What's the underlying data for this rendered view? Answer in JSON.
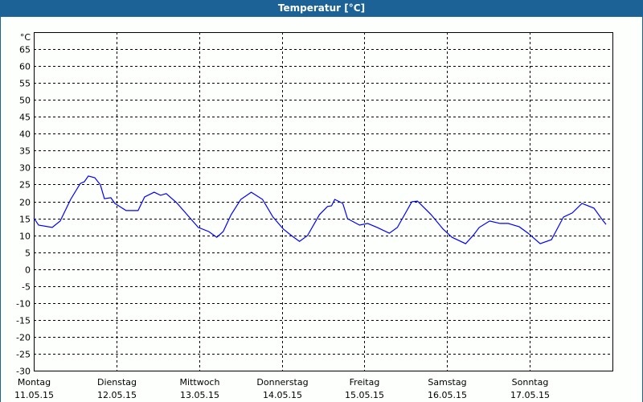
{
  "window": {
    "title": "Temperatur [°C]"
  },
  "chart_data": {
    "type": "line",
    "title": "Temperatur [°C]",
    "ylabel": "°C",
    "ylim": [
      -30,
      70
    ],
    "yticks": [
      65,
      60,
      55,
      50,
      45,
      40,
      35,
      30,
      25,
      20,
      15,
      10,
      5,
      0,
      -5,
      -10,
      -15,
      -20,
      -25,
      -30
    ],
    "xlim": [
      "11.05.15 00:00",
      "18.05.15 00:00"
    ],
    "xticks": [
      {
        "day": "Montag",
        "date": "11.05.15"
      },
      {
        "day": "Dienstag",
        "date": "12.05.15"
      },
      {
        "day": "Mittwoch",
        "date": "13.05.15"
      },
      {
        "day": "Donnerstag",
        "date": "14.05.15"
      },
      {
        "day": "Freitag",
        "date": "15.05.15"
      },
      {
        "day": "Samstag",
        "date": "16.05.15"
      },
      {
        "day": "Sonntag",
        "date": "17.05.15"
      }
    ],
    "grid": true,
    "grid_style": "dashed",
    "line_color": "#0000ff",
    "series": [
      {
        "points": [
          [
            "11.05.15 00:00",
            15.1
          ],
          [
            "11.05.15 01:24",
            13.0
          ],
          [
            "11.05.15 05:22",
            12.3
          ],
          [
            "11.05.15 07:41",
            14.2
          ],
          [
            "11.05.15 10:43",
            20.6
          ],
          [
            "11.05.15 13:31",
            25.3
          ],
          [
            "11.05.15 14:41",
            25.8
          ],
          [
            "11.05.15 15:50",
            27.5
          ],
          [
            "11.05.15 17:43",
            27.0
          ],
          [
            "11.05.15 19:20",
            24.9
          ],
          [
            "11.05.15 20:30",
            20.8
          ],
          [
            "11.05.15 22:22",
            21.1
          ],
          [
            "11.05.15 23:32",
            19.4
          ],
          [
            "12.05.15 02:48",
            17.3
          ],
          [
            "12.05.15 06:17",
            17.3
          ],
          [
            "12.05.15 08:10",
            21.3
          ],
          [
            "12.05.15 10:57",
            22.7
          ],
          [
            "12.05.15 12:49",
            21.8
          ],
          [
            "12.05.15 14:27",
            22.3
          ],
          [
            "12.05.15 17:29",
            19.6
          ],
          [
            "12.05.15 20:30",
            16.1
          ],
          [
            "12.05.15 23:46",
            12.3
          ],
          [
            "13.05.15 02:48",
            11.1
          ],
          [
            "13.05.15 05:08",
            9.4
          ],
          [
            "13.05.15 07:00",
            11.1
          ],
          [
            "13.05.15 09:19",
            16.1
          ],
          [
            "13.05.15 12:07",
            20.6
          ],
          [
            "13.05.15 15:09",
            22.7
          ],
          [
            "13.05.15 18:25",
            20.6
          ],
          [
            "13.05.15 21:26",
            15.4
          ],
          [
            "14.05.15 00:28",
            11.8
          ],
          [
            "14.05.15 02:48",
            9.9
          ],
          [
            "14.05.15 05:08",
            8.2
          ],
          [
            "14.05.15 07:28",
            9.9
          ],
          [
            "14.05.15 10:57",
            16.1
          ],
          [
            "14.05.15 13:17",
            18.5
          ],
          [
            "14.05.15 14:27",
            18.7
          ],
          [
            "14.05.15 15:23",
            20.6
          ],
          [
            "14.05.15 17:43",
            19.4
          ],
          [
            "14.05.15 19:06",
            14.9
          ],
          [
            "14.05.15 22:36",
            13.0
          ],
          [
            "15.05.15 00:56",
            13.5
          ],
          [
            "15.05.15 03:44",
            12.3
          ],
          [
            "15.05.15 07:13",
            10.6
          ],
          [
            "15.05.15 09:33",
            12.3
          ],
          [
            "15.05.15 13:45",
            19.9
          ],
          [
            "15.05.15 15:23",
            20.1
          ],
          [
            "15.05.15 19:20",
            16.1
          ],
          [
            "15.05.15 22:50",
            11.8
          ],
          [
            "16.05.15 01:24",
            9.4
          ],
          [
            "16.05.15 05:22",
            7.5
          ],
          [
            "16.05.15 07:41",
            10.1
          ],
          [
            "16.05.15 09:19",
            12.3
          ],
          [
            "16.05.15 12:21",
            14.2
          ],
          [
            "16.05.15 15:23",
            13.5
          ],
          [
            "16.05.15 17:43",
            13.5
          ],
          [
            "16.05.15 20:58",
            12.5
          ],
          [
            "16.05.15 23:32",
            10.6
          ],
          [
            "17.05.15 03:02",
            7.5
          ],
          [
            "17.05.15 06:17",
            8.7
          ],
          [
            "17.05.15 09:47",
            15.4
          ],
          [
            "17.05.15 12:21",
            16.6
          ],
          [
            "17.05.15 15:09",
            19.4
          ],
          [
            "17.05.15 18:38",
            18.0
          ],
          [
            "17.05.15 20:58",
            14.7
          ],
          [
            "17.05.15 22:08",
            13.2
          ]
        ]
      }
    ]
  }
}
